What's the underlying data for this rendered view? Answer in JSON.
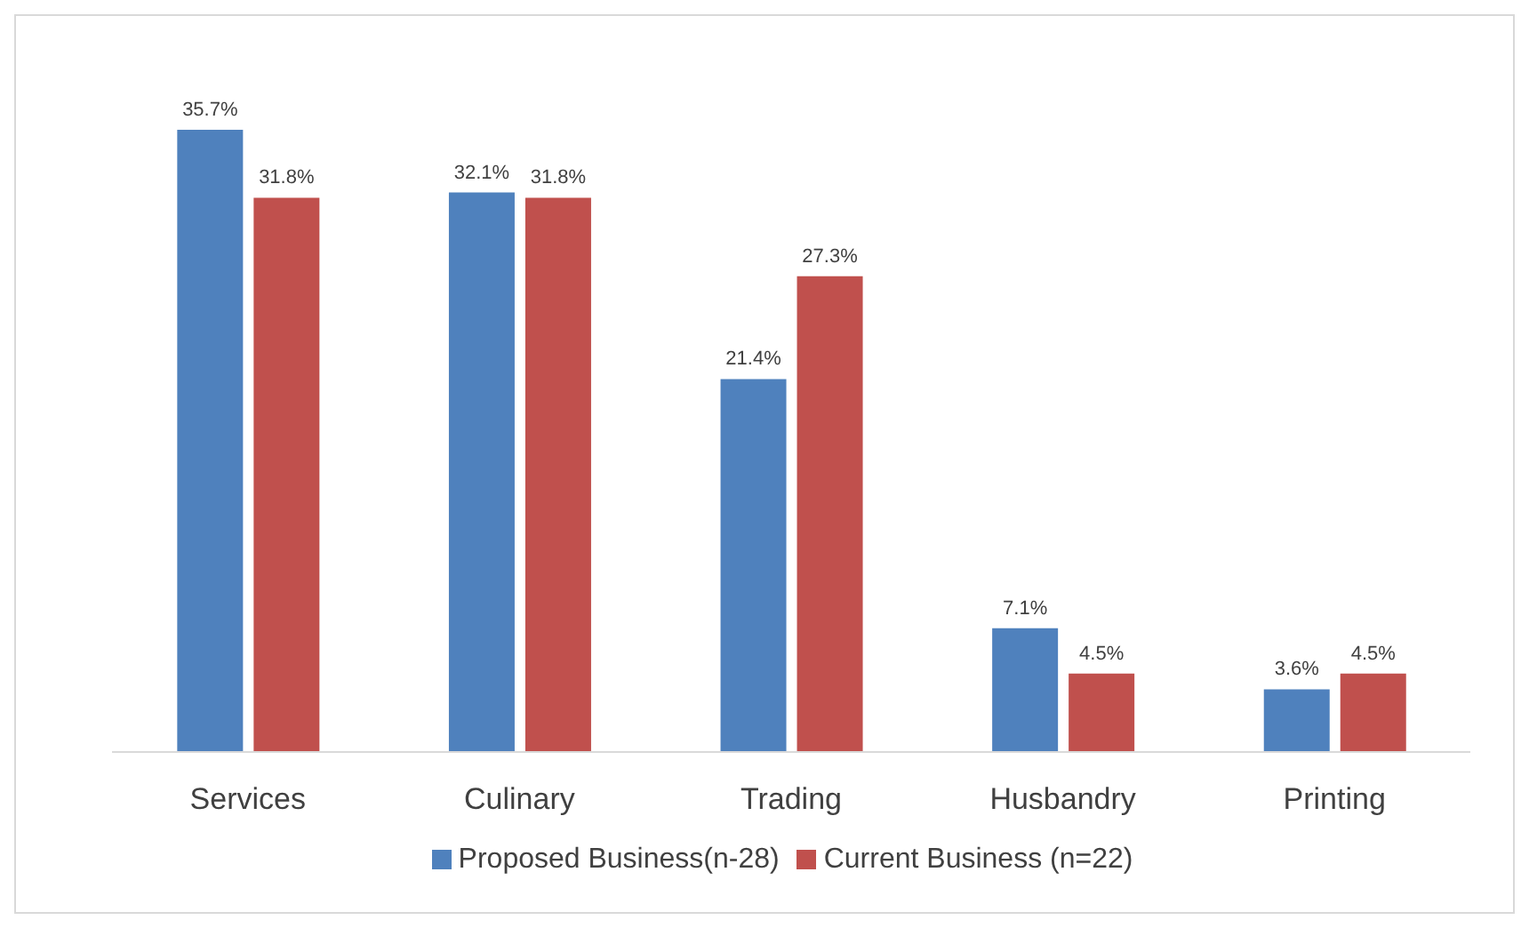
{
  "chart_data": {
    "type": "bar",
    "categories": [
      "Services",
      "Culinary",
      "Trading",
      "Husbandry",
      "Printing"
    ],
    "series": [
      {
        "name": "Proposed Business(n-28)",
        "color": "#4f81bd",
        "values": [
          35.7,
          32.1,
          21.4,
          7.1,
          3.6
        ],
        "value_labels": [
          "35.7%",
          "32.1%",
          "21.4%",
          "7.1%",
          "3.6%"
        ]
      },
      {
        "name": "Current Business (n=22)",
        "color": "#c0504d",
        "values": [
          31.8,
          31.8,
          27.3,
          4.5,
          4.5
        ],
        "value_labels": [
          "31.8%",
          "31.8%",
          "27.3%",
          "4.5%",
          "4.5%"
        ]
      }
    ],
    "legend": "bottom",
    "grid": false
  }
}
